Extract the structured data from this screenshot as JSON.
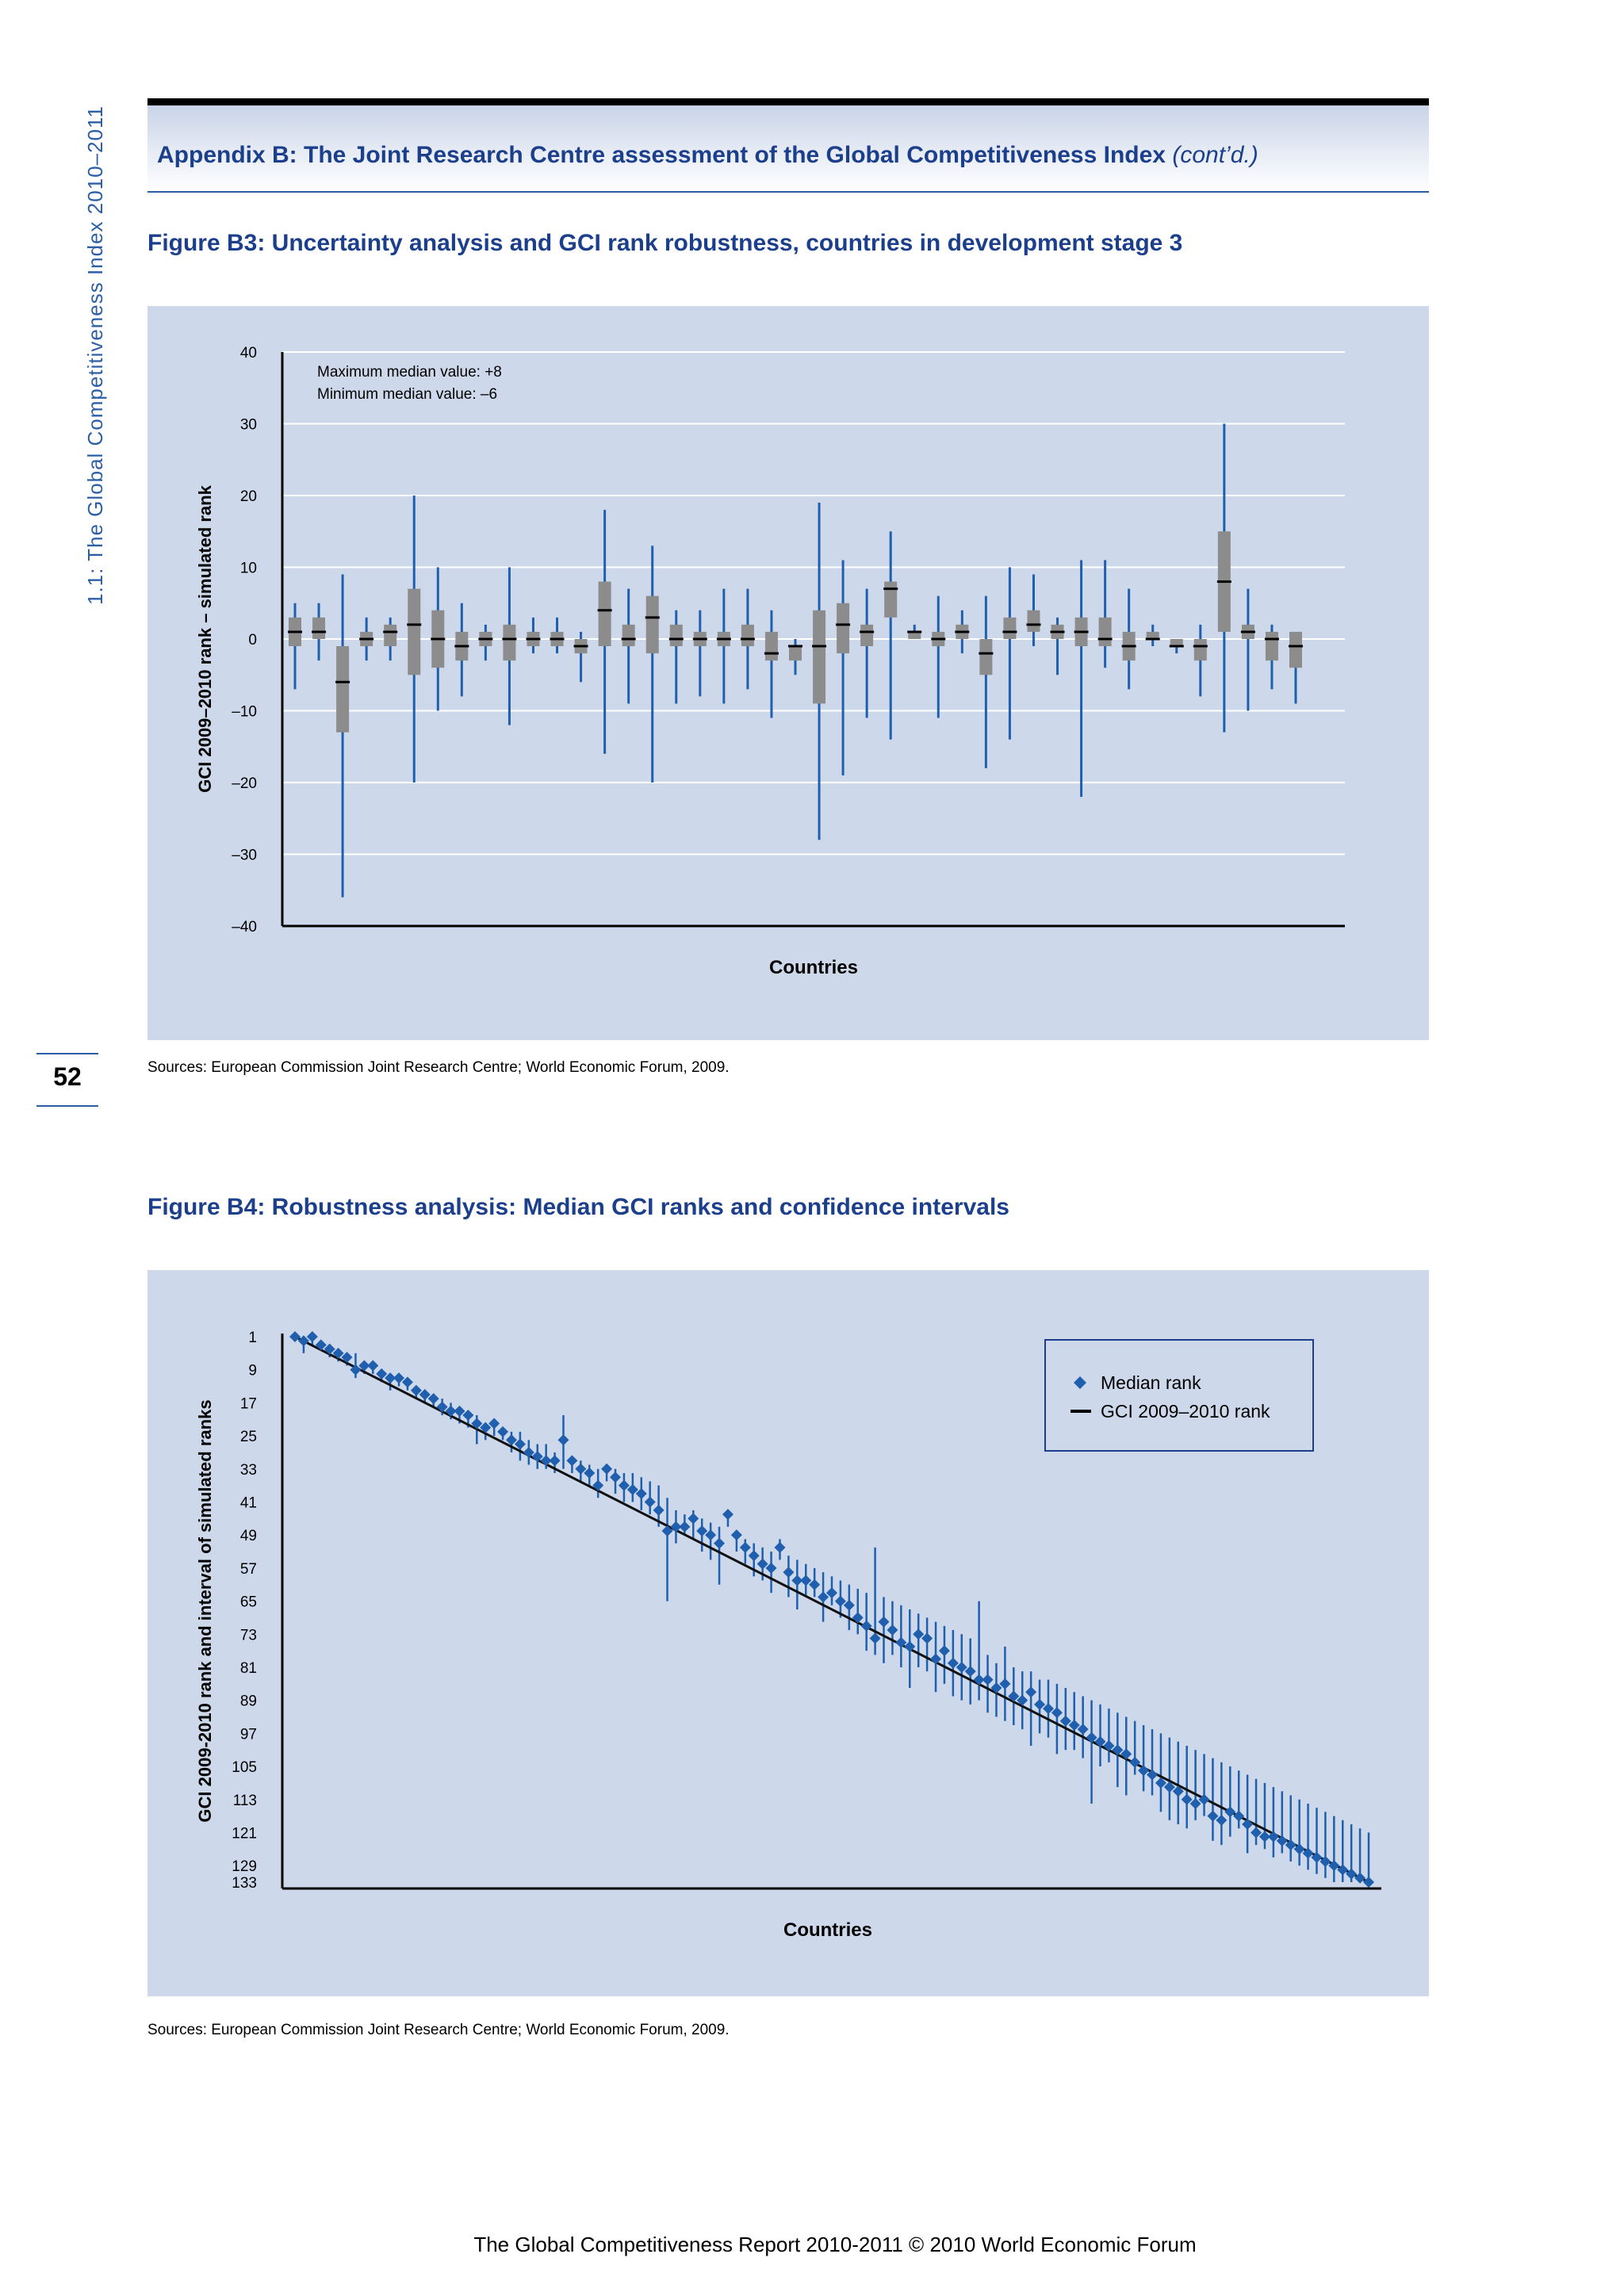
{
  "running_head": "1.1: The Global Competitiveness Index 2010–2011",
  "page_number": "52",
  "appendix": {
    "title": "Appendix B: The Joint Research Centre assessment of the Global Competitiveness Index",
    "cont": "(cont’d.)"
  },
  "fig_b3": {
    "title": "Figure B3: Uncertainty analysis and GCI rank robustness, countries in development stage 3",
    "sources": "Sources: European Commission Joint Research Centre; World Economic Forum, 2009."
  },
  "fig_b4": {
    "title": "Figure B4: Robustness analysis: Median GCI ranks and confidence intervals",
    "sources": "Sources: European Commission Joint Research Centre; World Economic Forum, 2009."
  },
  "footer": "The Global Competitiveness Report 2010-2011 © 2010 World Economic Forum",
  "colors": {
    "accent": "#1c3f8c",
    "panel": "#cdd8ea",
    "whisker": "#1f5fae",
    "box": "#8c8c8c",
    "marker": "#1f5fae"
  },
  "chart_data": [
    {
      "type": "box",
      "xlabel": "Countries",
      "ylabel": "GCI 2009–2010 rank – simulated rank",
      "ylim": [
        -40,
        40
      ],
      "yticks": [
        "40",
        "30",
        "20",
        "10",
        "0",
        "–10",
        "–20",
        "–30",
        "–40"
      ],
      "ytick_values": [
        40,
        30,
        20,
        10,
        0,
        -10,
        -20,
        -30,
        -40
      ],
      "annotations": [
        "Maximum median value: +8",
        "Minimum median value: –6"
      ],
      "grid": true,
      "boxes": [
        {
          "min": -7,
          "q1": -1,
          "med": 1,
          "q3": 3,
          "max": 5
        },
        {
          "min": -3,
          "q1": 0,
          "med": 1,
          "q3": 3,
          "max": 5
        },
        {
          "min": -36,
          "q1": -13,
          "med": -6,
          "q3": -1,
          "max": 9
        },
        {
          "min": -3,
          "q1": -1,
          "med": 0,
          "q3": 1,
          "max": 3
        },
        {
          "min": -3,
          "q1": -1,
          "med": 1,
          "q3": 2,
          "max": 3
        },
        {
          "min": -20,
          "q1": -5,
          "med": 2,
          "q3": 7,
          "max": 20
        },
        {
          "min": -10,
          "q1": -4,
          "med": 0,
          "q3": 4,
          "max": 10
        },
        {
          "min": -8,
          "q1": -3,
          "med": -1,
          "q3": 1,
          "max": 5
        },
        {
          "min": -3,
          "q1": -1,
          "med": 0,
          "q3": 1,
          "max": 2
        },
        {
          "min": -12,
          "q1": -3,
          "med": 0,
          "q3": 2,
          "max": 10
        },
        {
          "min": -2,
          "q1": -1,
          "med": 0,
          "q3": 1,
          "max": 3
        },
        {
          "min": -2,
          "q1": -1,
          "med": 0,
          "q3": 1,
          "max": 3
        },
        {
          "min": -6,
          "q1": -2,
          "med": -1,
          "q3": 0,
          "max": 1
        },
        {
          "min": -16,
          "q1": -1,
          "med": 4,
          "q3": 8,
          "max": 18
        },
        {
          "min": -9,
          "q1": -1,
          "med": 0,
          "q3": 2,
          "max": 7
        },
        {
          "min": -20,
          "q1": -2,
          "med": 3,
          "q3": 6,
          "max": 13
        },
        {
          "min": -9,
          "q1": -1,
          "med": 0,
          "q3": 2,
          "max": 4
        },
        {
          "min": -8,
          "q1": -1,
          "med": 0,
          "q3": 1,
          "max": 4
        },
        {
          "min": -9,
          "q1": -1,
          "med": 0,
          "q3": 1,
          "max": 7
        },
        {
          "min": -7,
          "q1": -1,
          "med": 0,
          "q3": 2,
          "max": 7
        },
        {
          "min": -11,
          "q1": -3,
          "med": -2,
          "q3": 1,
          "max": 4
        },
        {
          "min": -5,
          "q1": -3,
          "med": -1,
          "q3": -1,
          "max": 0
        },
        {
          "min": -28,
          "q1": -9,
          "med": -1,
          "q3": 4,
          "max": 19
        },
        {
          "min": -19,
          "q1": -2,
          "med": 2,
          "q3": 5,
          "max": 11
        },
        {
          "min": -11,
          "q1": -1,
          "med": 1,
          "q3": 2,
          "max": 7
        },
        {
          "min": -14,
          "q1": 3,
          "med": 7,
          "q3": 8,
          "max": 15
        },
        {
          "min": 0,
          "q1": 0,
          "med": 1,
          "q3": 1,
          "max": 2
        },
        {
          "min": -11,
          "q1": -1,
          "med": 0,
          "q3": 1,
          "max": 6
        },
        {
          "min": -2,
          "q1": 0,
          "med": 1,
          "q3": 2,
          "max": 4
        },
        {
          "min": -18,
          "q1": -5,
          "med": -2,
          "q3": 0,
          "max": 6
        },
        {
          "min": -14,
          "q1": 0,
          "med": 1,
          "q3": 3,
          "max": 10
        },
        {
          "min": -1,
          "q1": 1,
          "med": 2,
          "q3": 4,
          "max": 9
        },
        {
          "min": -5,
          "q1": 0,
          "med": 1,
          "q3": 2,
          "max": 3
        },
        {
          "min": -22,
          "q1": -1,
          "med": 1,
          "q3": 3,
          "max": 11
        },
        {
          "min": -4,
          "q1": -1,
          "med": 0,
          "q3": 3,
          "max": 11
        },
        {
          "min": -7,
          "q1": -3,
          "med": -1,
          "q3": 1,
          "max": 7
        },
        {
          "min": -1,
          "q1": 0,
          "med": 0,
          "q3": 1,
          "max": 2
        },
        {
          "min": -2,
          "q1": -1,
          "med": -1,
          "q3": 0,
          "max": 0
        },
        {
          "min": -8,
          "q1": -3,
          "med": -1,
          "q3": 0,
          "max": 2
        },
        {
          "min": -13,
          "q1": 1,
          "med": 8,
          "q3": 15,
          "max": 30
        },
        {
          "min": -10,
          "q1": 0,
          "med": 1,
          "q3": 2,
          "max": 7
        },
        {
          "min": -7,
          "q1": -3,
          "med": 0,
          "q3": 1,
          "max": 2
        },
        {
          "min": -9,
          "q1": -4,
          "med": -1,
          "q3": 1,
          "max": 1
        }
      ]
    },
    {
      "type": "scatter",
      "xlabel": "Countries",
      "ylabel": "GCI 2009-2010 rank and interval of simulated ranks",
      "ylim": [
        1,
        133
      ],
      "y_inverted": true,
      "yticks": [
        "1",
        "9",
        "17",
        "25",
        "33",
        "41",
        "49",
        "57",
        "65",
        "73",
        "81",
        "89",
        "97",
        "105",
        "113",
        "121",
        "129",
        "133"
      ],
      "ytick_values": [
        1,
        9,
        17,
        25,
        33,
        41,
        49,
        57,
        65,
        73,
        81,
        89,
        97,
        105,
        113,
        121,
        129,
        133
      ],
      "legend": {
        "placement": "top-right",
        "entries": [
          "Median rank",
          "GCI 2009–2010 rank"
        ]
      },
      "series": [
        {
          "name": "Median rank",
          "kind": "points",
          "x_range": [
            1,
            133
          ],
          "note": "median ranks with interval of simulated ranks"
        },
        {
          "name": "GCI 2009–2010 rank",
          "kind": "line",
          "x": [
            1,
            133
          ],
          "y": [
            1,
            133
          ]
        }
      ],
      "intervals": [
        [
          1,
          1,
          2
        ],
        [
          1,
          2,
          5
        ],
        [
          1,
          1,
          3
        ],
        [
          2,
          3,
          4
        ],
        [
          3,
          4,
          6
        ],
        [
          4,
          5,
          7
        ],
        [
          5,
          6,
          8
        ],
        [
          5,
          9,
          11
        ],
        [
          7,
          8,
          10
        ],
        [
          8,
          8,
          10
        ],
        [
          9,
          10,
          12
        ],
        [
          10,
          11,
          14
        ],
        [
          11,
          11,
          13
        ],
        [
          12,
          12,
          14
        ],
        [
          13,
          14,
          16
        ],
        [
          14,
          15,
          17
        ],
        [
          15,
          16,
          18
        ],
        [
          16,
          18,
          20
        ],
        [
          17,
          19,
          21
        ],
        [
          18,
          19,
          22
        ],
        [
          19,
          20,
          23
        ],
        [
          20,
          22,
          27
        ],
        [
          22,
          23,
          26
        ],
        [
          23,
          22,
          25
        ],
        [
          23,
          24,
          26
        ],
        [
          24,
          26,
          29
        ],
        [
          24,
          27,
          31
        ],
        [
          26,
          29,
          32
        ],
        [
          27,
          30,
          33
        ],
        [
          27,
          31,
          33
        ],
        [
          29,
          31,
          34
        ],
        [
          20,
          26,
          33
        ],
        [
          30,
          31,
          34
        ],
        [
          31,
          33,
          36
        ],
        [
          32,
          34,
          37
        ],
        [
          33,
          37,
          40
        ],
        [
          32,
          33,
          36
        ],
        [
          33,
          35,
          39
        ],
        [
          34,
          37,
          41
        ],
        [
          34,
          38,
          41
        ],
        [
          35,
          39,
          43
        ],
        [
          36,
          41,
          44
        ],
        [
          37,
          43,
          47
        ],
        [
          40,
          48,
          65
        ],
        [
          43,
          47,
          51
        ],
        [
          44,
          47,
          49
        ],
        [
          43,
          45,
          50
        ],
        [
          45,
          48,
          53
        ],
        [
          46,
          49,
          55
        ],
        [
          47,
          51,
          61
        ],
        [
          43,
          44,
          47
        ],
        [
          48,
          49,
          53
        ],
        [
          50,
          52,
          56
        ],
        [
          51,
          54,
          59
        ],
        [
          52,
          56,
          60
        ],
        [
          53,
          57,
          63
        ],
        [
          50,
          52,
          55
        ],
        [
          54,
          58,
          64
        ],
        [
          55,
          60,
          67
        ],
        [
          56,
          60,
          64
        ],
        [
          57,
          61,
          64
        ],
        [
          58,
          64,
          70
        ],
        [
          59,
          63,
          66
        ],
        [
          60,
          65,
          69
        ],
        [
          61,
          66,
          72
        ],
        [
          62,
          69,
          73
        ],
        [
          63,
          71,
          77
        ],
        [
          52,
          74,
          78
        ],
        [
          64,
          70,
          80
        ],
        [
          65,
          72,
          78
        ],
        [
          66,
          75,
          81
        ],
        [
          67,
          76,
          86
        ],
        [
          68,
          73,
          81
        ],
        [
          69,
          74,
          82
        ],
        [
          70,
          79,
          87
        ],
        [
          71,
          77,
          85
        ],
        [
          72,
          80,
          88
        ],
        [
          73,
          81,
          89
        ],
        [
          74,
          82,
          90
        ],
        [
          65,
          84,
          89
        ],
        [
          78,
          84,
          92
        ],
        [
          80,
          86,
          93
        ],
        [
          76,
          85,
          94
        ],
        [
          81,
          88,
          95
        ],
        [
          82,
          89,
          96
        ],
        [
          82,
          87,
          100
        ],
        [
          84,
          90,
          97
        ],
        [
          84,
          91,
          98
        ],
        [
          85,
          92,
          102
        ],
        [
          86,
          94,
          101
        ],
        [
          87,
          95,
          101
        ],
        [
          88,
          96,
          103
        ],
        [
          89,
          98,
          114
        ],
        [
          90,
          99,
          105
        ],
        [
          91,
          100,
          104
        ],
        [
          92,
          101,
          110
        ],
        [
          93,
          102,
          112
        ],
        [
          94,
          104,
          107
        ],
        [
          95,
          106,
          111
        ],
        [
          96,
          107,
          112
        ],
        [
          97,
          109,
          116
        ],
        [
          98,
          110,
          118
        ],
        [
          99,
          111,
          119
        ],
        [
          100,
          113,
          120
        ],
        [
          101,
          114,
          118
        ],
        [
          102,
          113,
          117
        ],
        [
          103,
          117,
          123
        ],
        [
          104,
          118,
          124
        ],
        [
          105,
          116,
          122
        ],
        [
          106,
          117,
          120
        ],
        [
          107,
          119,
          126
        ],
        [
          108,
          121,
          124
        ],
        [
          109,
          122,
          125
        ],
        [
          110,
          122,
          127
        ],
        [
          111,
          123,
          126
        ],
        [
          112,
          124,
          128
        ],
        [
          113,
          125,
          129
        ],
        [
          114,
          126,
          130
        ],
        [
          115,
          127,
          131
        ],
        [
          116,
          128,
          132
        ],
        [
          117,
          129,
          133
        ],
        [
          118,
          130,
          133
        ],
        [
          119,
          131,
          133
        ],
        [
          120,
          132,
          133
        ],
        [
          121,
          133,
          133
        ]
      ]
    }
  ]
}
